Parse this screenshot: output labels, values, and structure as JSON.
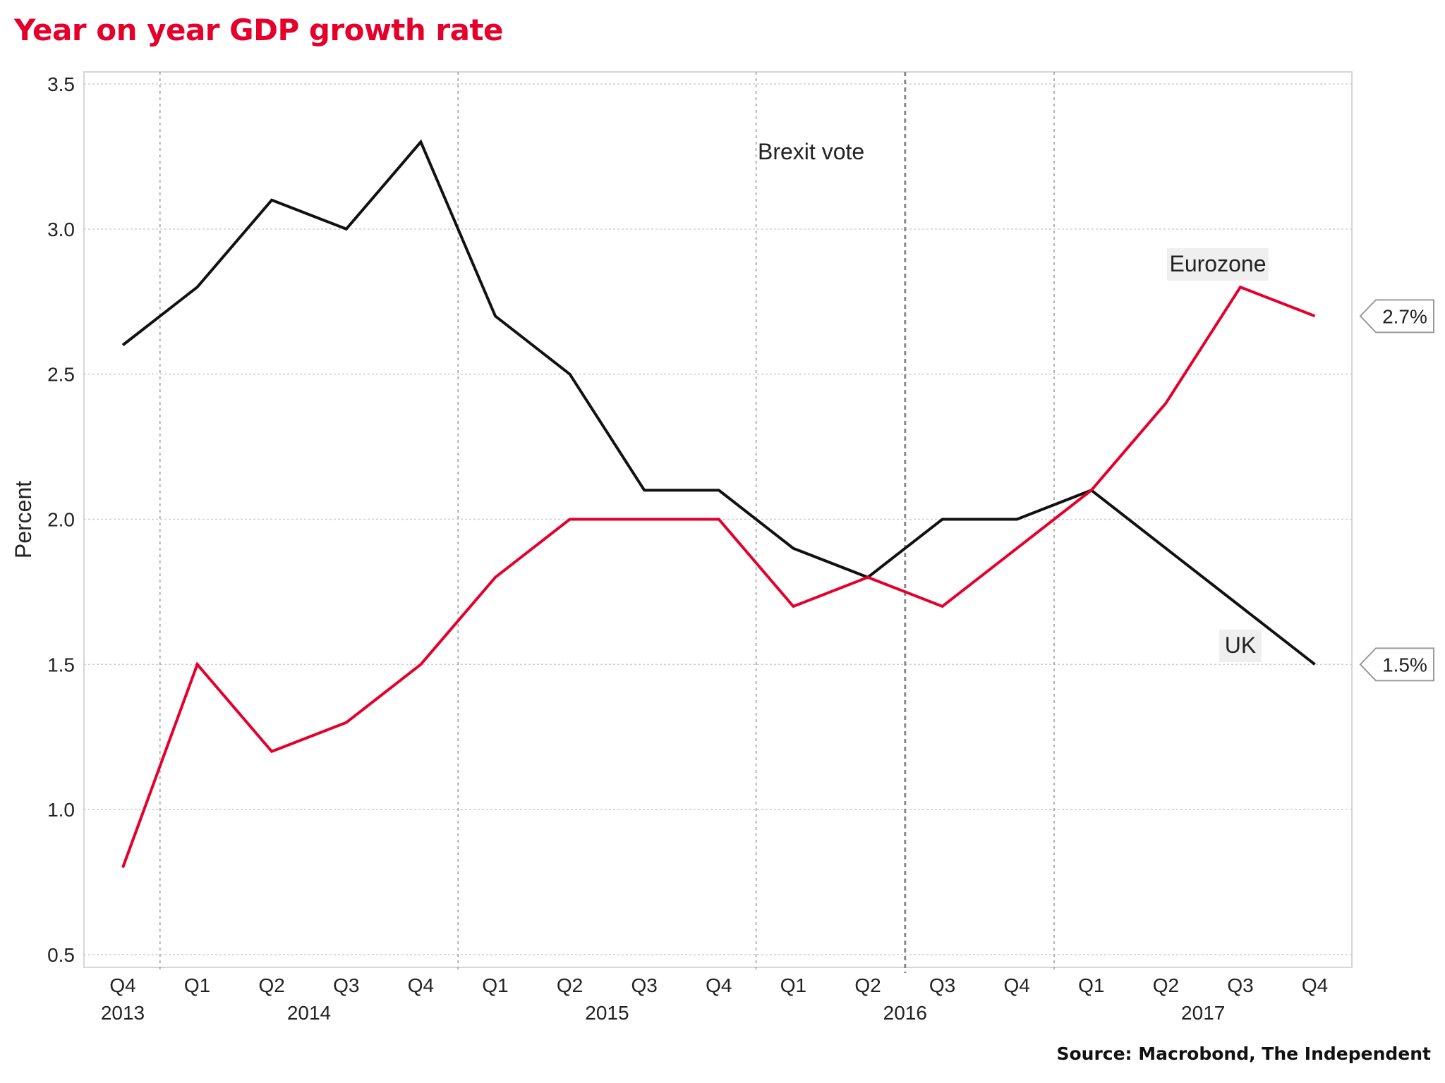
{
  "chart_data": {
    "type": "line",
    "title": "Year on year GDP growth rate",
    "ylabel": "Percent",
    "xlabel": "",
    "ylim": [
      0.5,
      3.5
    ],
    "yticks": [
      "0.5",
      "1.0",
      "1.5",
      "2.0",
      "2.5",
      "3.0",
      "3.5"
    ],
    "quarters": [
      "Q4",
      "Q1",
      "Q2",
      "Q3",
      "Q4",
      "Q1",
      "Q2",
      "Q3",
      "Q4",
      "Q1",
      "Q2",
      "Q3",
      "Q4",
      "Q1",
      "Q2",
      "Q3",
      "Q4"
    ],
    "years": [
      "2013",
      "2014",
      "2015",
      "2016",
      "2017"
    ],
    "grid": true,
    "series": [
      {
        "name": "UK",
        "color": "#111111",
        "end_label": "1.5%",
        "values": [
          2.6,
          2.8,
          3.1,
          3.0,
          3.3,
          2.7,
          2.5,
          2.1,
          2.1,
          1.9,
          1.8,
          2.0,
          2.0,
          2.1,
          1.9,
          1.7,
          1.5
        ]
      },
      {
        "name": "Eurozone",
        "color": "#e4002b",
        "end_label": "2.7%",
        "values": [
          0.8,
          1.5,
          1.2,
          1.3,
          1.5,
          1.8,
          2.0,
          2.0,
          2.0,
          1.7,
          1.8,
          1.7,
          1.9,
          2.1,
          2.4,
          2.8,
          2.7
        ]
      }
    ],
    "annotations": [
      {
        "text": "Brexit vote"
      }
    ]
  },
  "source": "Source: Macrobond, The Independent"
}
